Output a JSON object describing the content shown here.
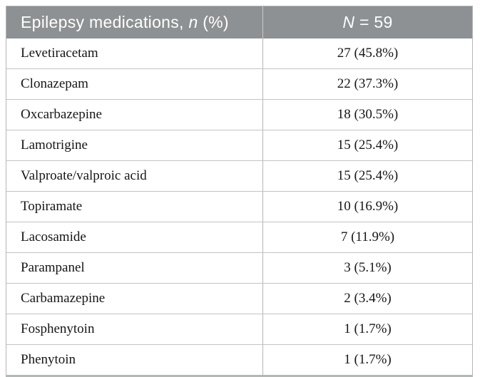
{
  "table": {
    "header": {
      "col1_text": "Epilepsy medications, ",
      "col1_italic": "n",
      "col1_suffix": " (%)",
      "col2_italic": "N",
      "col2_suffix": " = 59"
    },
    "rows": [
      {
        "medication": "Levetiracetam",
        "value": "27 (45.8%)"
      },
      {
        "medication": "Clonazepam",
        "value": "22 (37.3%)"
      },
      {
        "medication": "Oxcarbazepine",
        "value": "18 (30.5%)"
      },
      {
        "medication": "Lamotrigine",
        "value": "15 (25.4%)"
      },
      {
        "medication": "Valproate/valproic acid",
        "value": "15 (25.4%)"
      },
      {
        "medication": "Topiramate",
        "value": "10 (16.9%)"
      },
      {
        "medication": "Lacosamide",
        "value": "7 (11.9%)"
      },
      {
        "medication": "Parampanel",
        "value": "3 (5.1%)"
      },
      {
        "medication": "Carbamazepine",
        "value": "2 (3.4%)"
      },
      {
        "medication": "Fosphenytoin",
        "value": "1 (1.7%)"
      },
      {
        "medication": "Phenytoin",
        "value": "1 (1.7%)"
      }
    ],
    "colors": {
      "header_background": "#8e9193",
      "header_text": "#ffffff",
      "body_text": "#161616",
      "outer_border": "#b4b6b6",
      "row_divider": "#c3c3c3",
      "bottom_border": "#b2b9b3",
      "page_background": "#ffffff"
    }
  }
}
